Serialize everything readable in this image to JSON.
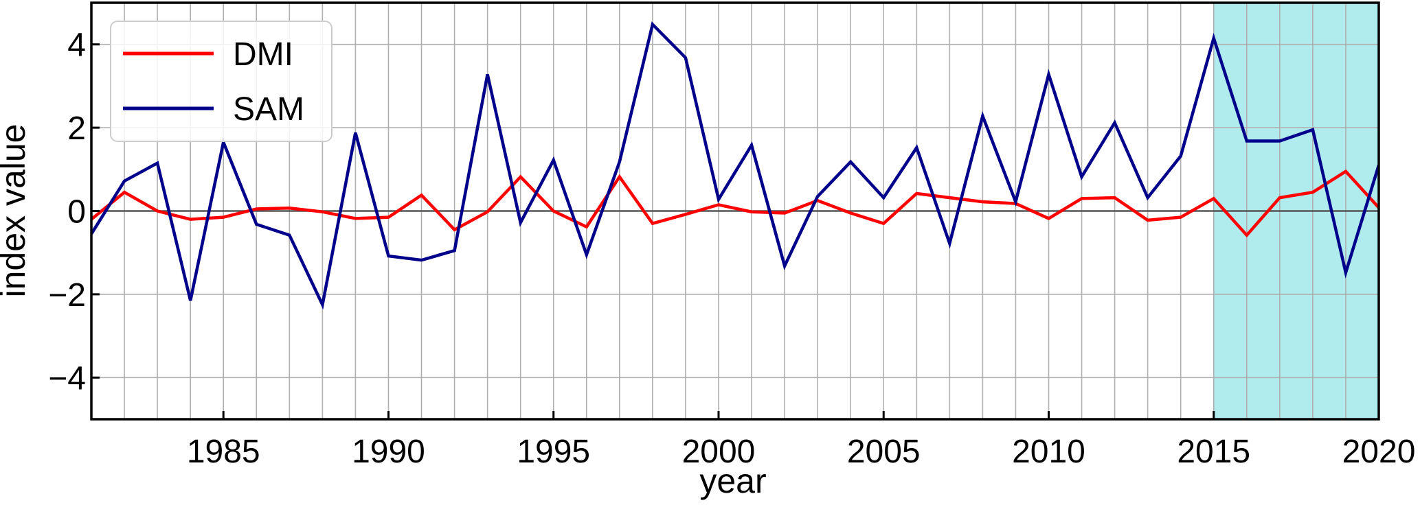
{
  "chart_data": {
    "type": "line",
    "title": "",
    "xlabel": "year",
    "ylabel": "index value",
    "xlim": [
      1981,
      2020
    ],
    "ylim": [
      -5,
      5
    ],
    "x_ticks": [
      1985,
      1990,
      1995,
      2000,
      2005,
      2010,
      2015,
      2020
    ],
    "x_tick_labels": [
      "1985",
      "1990",
      "1995",
      "2000",
      "2005",
      "2010",
      "2015",
      "2020"
    ],
    "y_ticks": [
      -4,
      -2,
      0,
      2,
      4
    ],
    "y_tick_labels": [
      "−4",
      "−2",
      "0",
      "2",
      "4"
    ],
    "grid": true,
    "grid_x_every_year": true,
    "zero_line": true,
    "legend_position": "top-left",
    "highlight_span": {
      "x_from": 2015,
      "x_to": 2020,
      "color": "#b0ebee"
    },
    "x": [
      1981,
      1982,
      1983,
      1984,
      1985,
      1986,
      1987,
      1988,
      1989,
      1990,
      1991,
      1992,
      1993,
      1994,
      1995,
      1996,
      1997,
      1998,
      1999,
      2000,
      2001,
      2002,
      2003,
      2004,
      2005,
      2006,
      2007,
      2008,
      2009,
      2010,
      2011,
      2012,
      2013,
      2014,
      2015,
      2016,
      2017,
      2018,
      2019,
      2020
    ],
    "series": [
      {
        "name": "DMI",
        "color": "#ff0000",
        "values": [
          -0.2,
          0.45,
          0.0,
          -0.2,
          -0.15,
          0.05,
          0.07,
          -0.02,
          -0.18,
          -0.15,
          0.38,
          -0.45,
          -0.02,
          0.82,
          0.0,
          -0.38,
          0.82,
          -0.3,
          -0.08,
          0.15,
          -0.02,
          -0.05,
          0.25,
          -0.05,
          -0.3,
          0.42,
          0.32,
          0.22,
          0.18,
          -0.18,
          0.3,
          0.32,
          -0.22,
          -0.15,
          0.3,
          -0.58,
          0.32,
          0.45,
          0.95,
          0.08
        ]
      },
      {
        "name": "SAM",
        "color": "#00008b",
        "values": [
          -0.55,
          0.72,
          1.15,
          -2.15,
          1.65,
          -0.32,
          -0.58,
          -2.25,
          1.88,
          -1.08,
          -1.18,
          -0.95,
          3.28,
          -0.28,
          1.22,
          -1.05,
          1.18,
          4.48,
          3.68,
          0.28,
          1.58,
          -1.32,
          0.35,
          1.18,
          0.32,
          1.52,
          -0.78,
          2.28,
          0.22,
          3.28,
          0.82,
          2.12,
          0.32,
          1.32,
          4.15,
          1.68,
          1.68,
          1.95,
          -1.48,
          1.1
        ]
      }
    ]
  }
}
